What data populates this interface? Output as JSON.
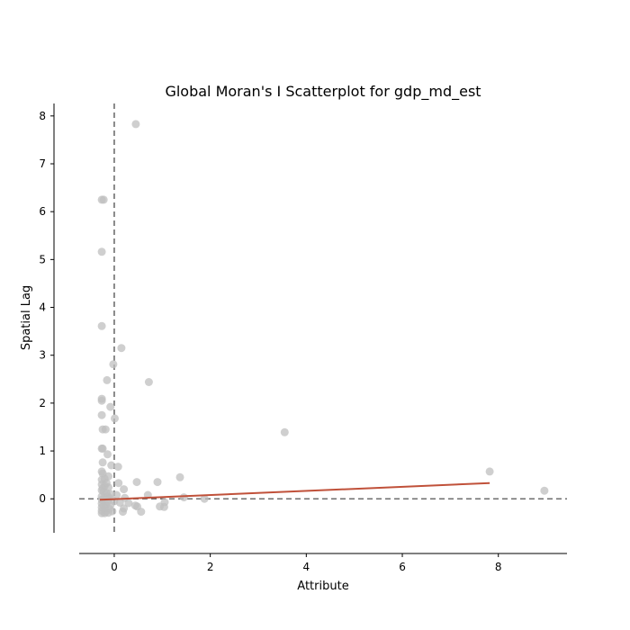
{
  "chart_data": {
    "type": "scatter",
    "title": "Global Moran's I Scatterplot for gdp_md_est",
    "xlabel": "Attribute",
    "ylabel": "Spatial Lag",
    "xlim": [
      -0.73,
      9.43
    ],
    "ylim": [
      -0.71,
      8.26
    ],
    "xticks": [
      0,
      2,
      4,
      6,
      8
    ],
    "yticks": [
      0,
      1,
      2,
      3,
      4,
      5,
      6,
      7,
      8
    ],
    "grid": false,
    "legend": "none",
    "colors": {
      "points": "#bfbfbf",
      "fit_line": "#c0513a",
      "reference_lines": "#6e6e6e"
    },
    "reference_lines": {
      "x": 0,
      "y": 0
    },
    "fit_line": {
      "x": [
        -0.3,
        7.82
      ],
      "y": [
        -0.02,
        0.33
      ]
    },
    "series": [
      {
        "points": [
          {
            "x": 0.45,
            "y": 7.83
          },
          {
            "x": -0.26,
            "y": 6.25
          },
          {
            "x": -0.22,
            "y": 6.25
          },
          {
            "x": -0.26,
            "y": 5.16
          },
          {
            "x": -0.26,
            "y": 3.61
          },
          {
            "x": 0.15,
            "y": 3.15
          },
          {
            "x": -0.02,
            "y": 2.81
          },
          {
            "x": 0.72,
            "y": 2.44
          },
          {
            "x": -0.15,
            "y": 2.48
          },
          {
            "x": -0.26,
            "y": 2.09
          },
          {
            "x": -0.26,
            "y": 2.05
          },
          {
            "x": -0.08,
            "y": 1.92
          },
          {
            "x": -0.26,
            "y": 1.75
          },
          {
            "x": 0.01,
            "y": 1.68
          },
          {
            "x": -0.24,
            "y": 1.45
          },
          {
            "x": -0.18,
            "y": 1.45
          },
          {
            "x": 3.55,
            "y": 1.39
          },
          {
            "x": -0.26,
            "y": 1.05
          },
          {
            "x": -0.24,
            "y": 1.05
          },
          {
            "x": -0.14,
            "y": 0.93
          },
          {
            "x": -0.24,
            "y": 0.76
          },
          {
            "x": -0.06,
            "y": 0.7
          },
          {
            "x": 0.08,
            "y": 0.67
          },
          {
            "x": -0.26,
            "y": 0.57
          },
          {
            "x": -0.24,
            "y": 0.53
          },
          {
            "x": 7.82,
            "y": 0.57
          },
          {
            "x": 1.37,
            "y": 0.45
          },
          {
            "x": -0.26,
            "y": 0.4
          },
          {
            "x": -0.2,
            "y": 0.42
          },
          {
            "x": -0.12,
            "y": 0.47
          },
          {
            "x": 0.47,
            "y": 0.35
          },
          {
            "x": 0.9,
            "y": 0.35
          },
          {
            "x": 0.09,
            "y": 0.33
          },
          {
            "x": -0.26,
            "y": 0.3
          },
          {
            "x": -0.2,
            "y": 0.27
          },
          {
            "x": -0.12,
            "y": 0.24
          },
          {
            "x": 0.2,
            "y": 0.2
          },
          {
            "x": 8.96,
            "y": 0.17
          },
          {
            "x": -0.26,
            "y": 0.18
          },
          {
            "x": -0.22,
            "y": 0.15
          },
          {
            "x": -0.16,
            "y": 0.12
          },
          {
            "x": -0.08,
            "y": 0.1
          },
          {
            "x": 0.05,
            "y": 0.08
          },
          {
            "x": 0.7,
            "y": 0.08
          },
          {
            "x": -0.26,
            "y": 0.05
          },
          {
            "x": -0.2,
            "y": 0.03
          },
          {
            "x": -0.1,
            "y": 0.02
          },
          {
            "x": 0.22,
            "y": 0.02
          },
          {
            "x": 1.45,
            "y": 0.03
          },
          {
            "x": 1.88,
            "y": 0.0
          },
          {
            "x": -0.26,
            "y": -0.02
          },
          {
            "x": -0.22,
            "y": -0.05
          },
          {
            "x": -0.14,
            "y": -0.06
          },
          {
            "x": 0.0,
            "y": -0.05
          },
          {
            "x": 0.12,
            "y": -0.08
          },
          {
            "x": 0.3,
            "y": -0.09
          },
          {
            "x": 1.05,
            "y": -0.07
          },
          {
            "x": -0.26,
            "y": -0.1
          },
          {
            "x": -0.18,
            "y": -0.12
          },
          {
            "x": -0.08,
            "y": -0.13
          },
          {
            "x": 0.44,
            "y": -0.14
          },
          {
            "x": 0.48,
            "y": -0.16
          },
          {
            "x": 0.95,
            "y": -0.16
          },
          {
            "x": 1.04,
            "y": -0.17
          },
          {
            "x": -0.26,
            "y": -0.18
          },
          {
            "x": -0.2,
            "y": -0.2
          },
          {
            "x": -0.1,
            "y": -0.21
          },
          {
            "x": 0.2,
            "y": -0.2
          },
          {
            "x": -0.26,
            "y": -0.25
          },
          {
            "x": -0.18,
            "y": -0.27
          },
          {
            "x": -0.04,
            "y": -0.26
          },
          {
            "x": 0.18,
            "y": -0.27
          },
          {
            "x": 0.56,
            "y": -0.27
          },
          {
            "x": -0.26,
            "y": -0.3
          },
          {
            "x": -0.2,
            "y": -0.3
          },
          {
            "x": -0.12,
            "y": -0.29
          },
          {
            "x": -0.24,
            "y": 0.22
          },
          {
            "x": -0.16,
            "y": 0.33
          },
          {
            "x": -0.22,
            "y": -0.15
          },
          {
            "x": -0.14,
            "y": 0.05
          }
        ]
      }
    ]
  }
}
